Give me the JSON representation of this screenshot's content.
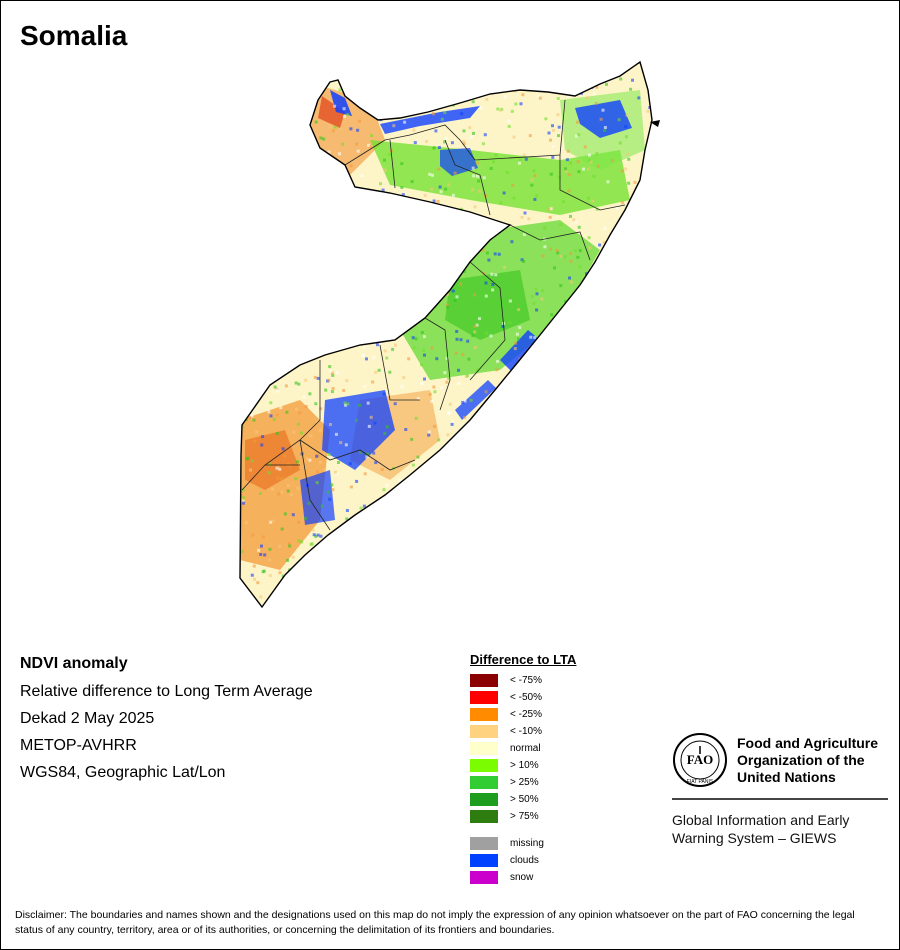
{
  "title": "Somalia",
  "info": {
    "heading": "NDVI anomaly",
    "subtitle": "Relative difference to Long Term Average",
    "period": "Dekad 2 May 2025",
    "sensor": "METOP-AVHRR",
    "projection": "WGS84, Geographic Lat/Lon"
  },
  "legend": {
    "title": "Difference to LTA",
    "items": [
      {
        "label": "< -75%",
        "color": "#8b0000"
      },
      {
        "label": "< -50%",
        "color": "#ff0000"
      },
      {
        "label": "< -25%",
        "color": "#ff8c00"
      },
      {
        "label": "< -10%",
        "color": "#ffd27f"
      },
      {
        "label": "normal",
        "color": "#ffffcc"
      },
      {
        "label": "> 10%",
        "color": "#7cfc00"
      },
      {
        "label": "> 25%",
        "color": "#32cd32"
      },
      {
        "label": "> 50%",
        "color": "#1e9e1e"
      },
      {
        "label": "> 75%",
        "color": "#2e7d10"
      }
    ],
    "extra": [
      {
        "label": "missing",
        "color": "#a0a0a0"
      },
      {
        "label": "clouds",
        "color": "#0040ff"
      },
      {
        "label": "snow",
        "color": "#cc00cc"
      }
    ]
  },
  "fao": {
    "org_line1": "Food and Agriculture",
    "org_line2": "Organization of the",
    "org_line3": "United Nations",
    "logo_text": "FAO",
    "logo_motto": "FIAT PANIS",
    "system_line1": "Global Information and Early",
    "system_line2": "Warning System – GIEWS"
  },
  "disclaimer": "Disclaimer: The boundaries and names shown and the designations used on this map do not imply the expression of any opinion whatsoever on the part of FAO concerning the legal status of any country, territory, area or of its authorities, or concerning the delimitation of its frontiers and boundaries."
}
